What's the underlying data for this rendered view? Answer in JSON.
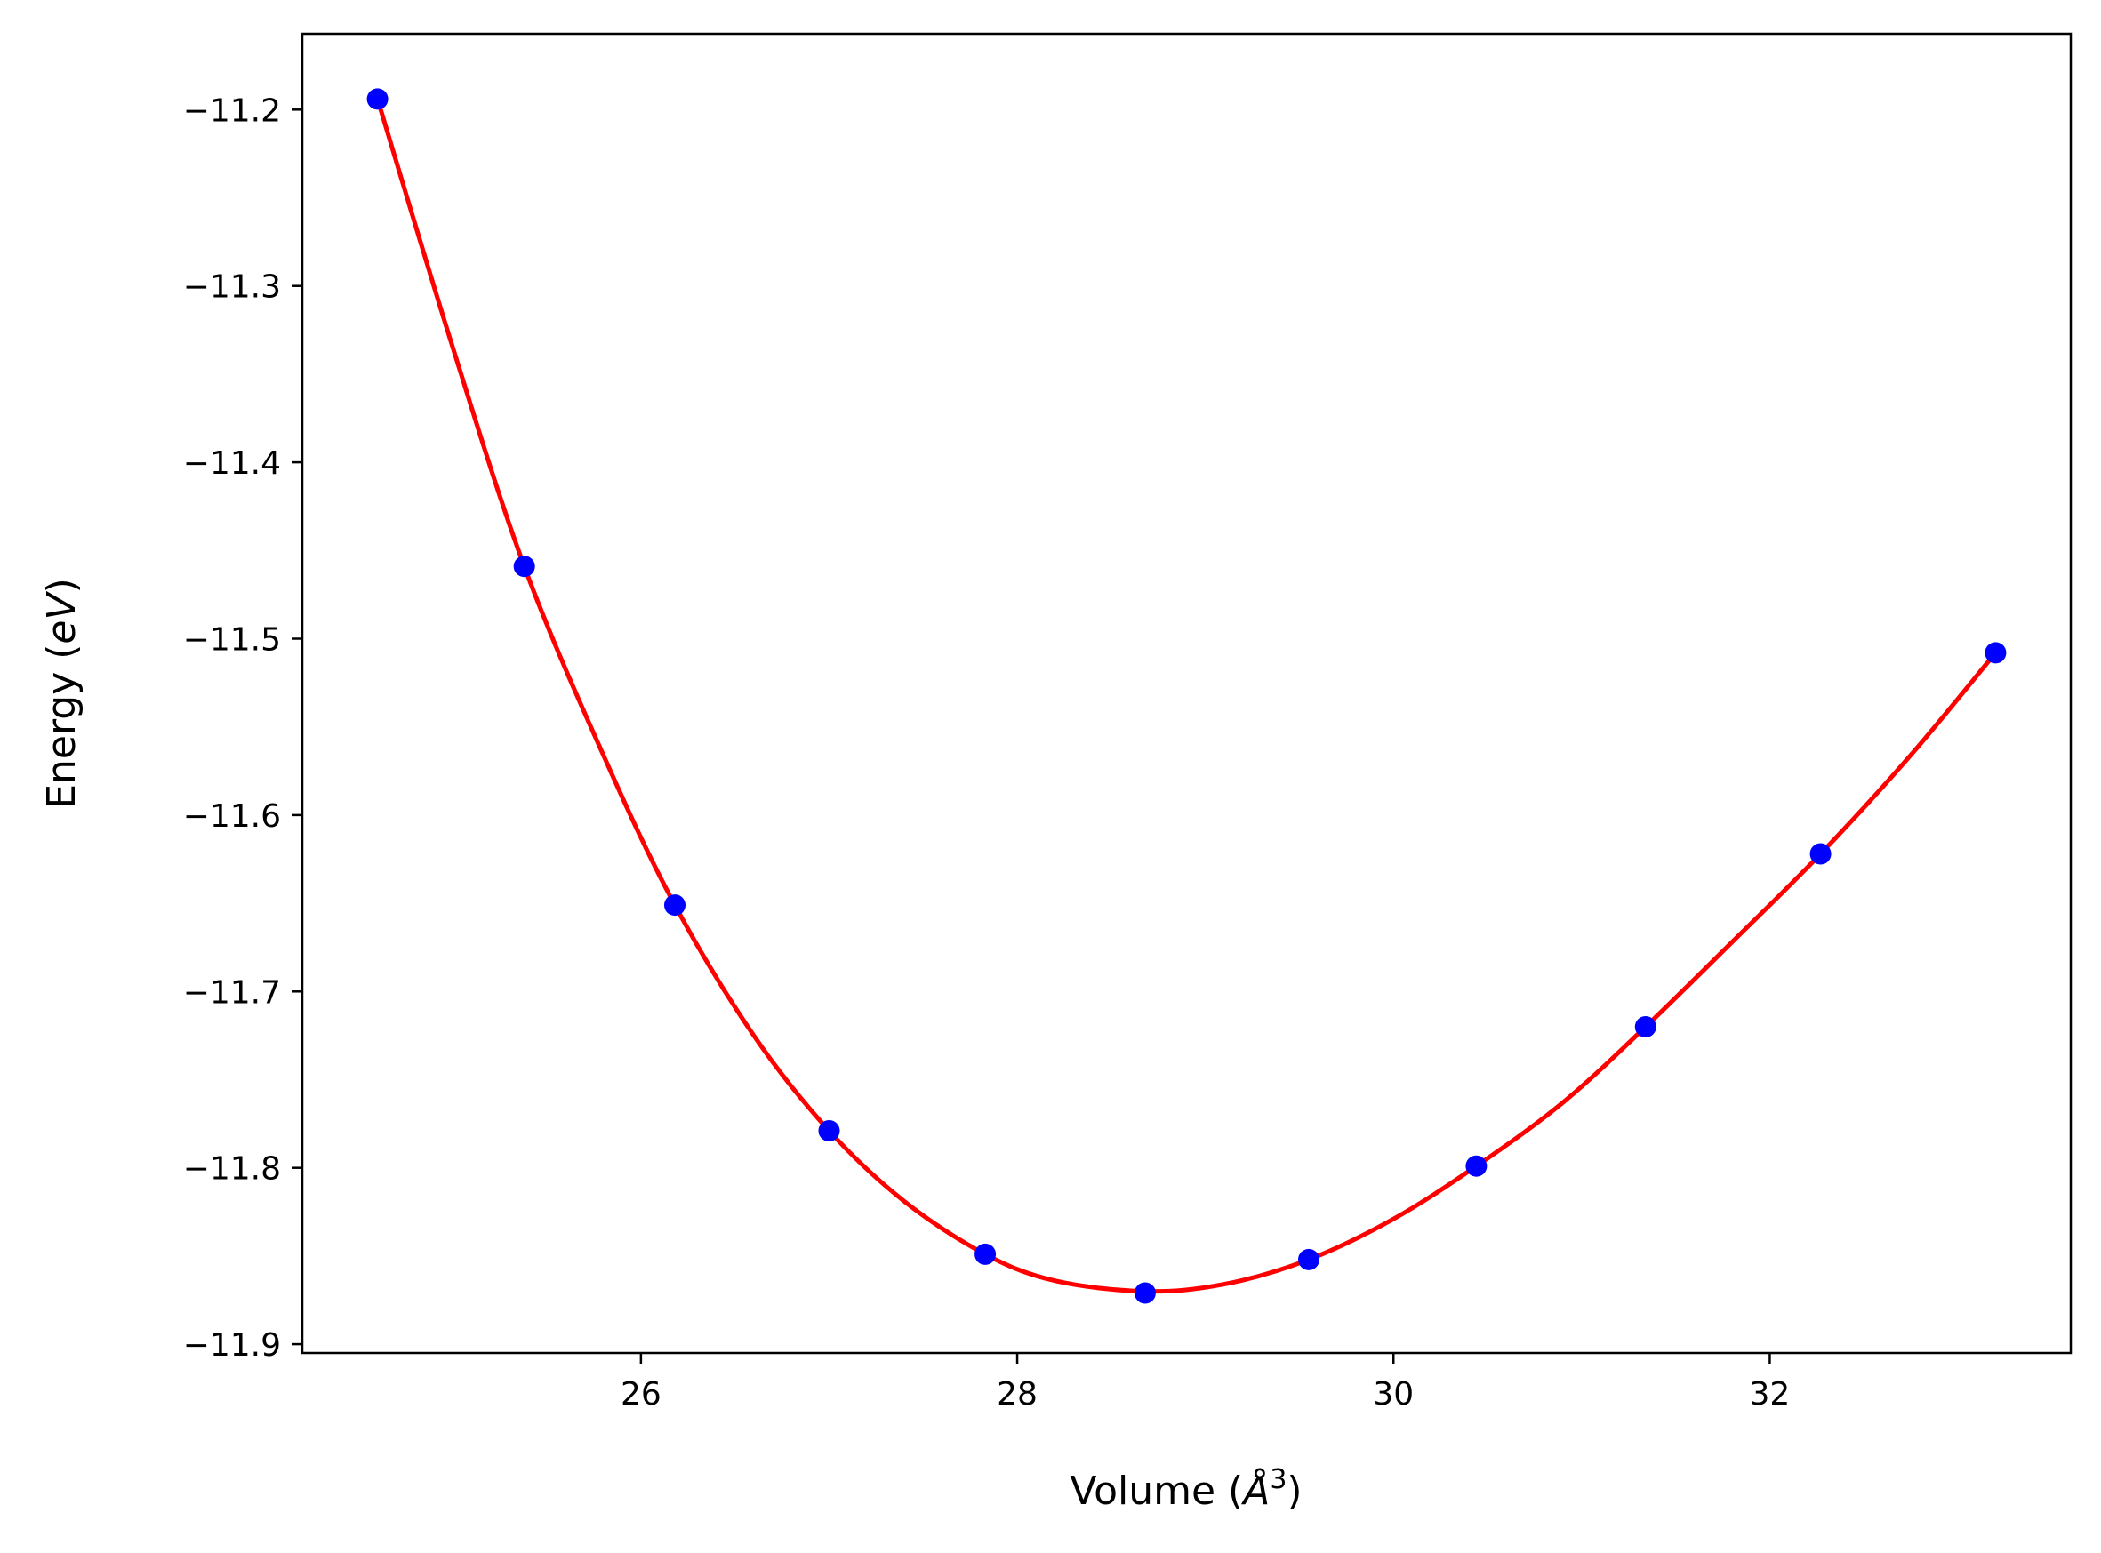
{
  "chart_data": {
    "type": "scatter",
    "xlabel": {
      "prefix": "Volume (",
      "unit": "Å",
      "sup": "3",
      "suffix": ")"
    },
    "ylabel": {
      "prefix": "Energy (",
      "unit": "eV",
      "suffix": ")"
    },
    "xlim": [
      24.2,
      33.6
    ],
    "ylim": [
      -11.905,
      -11.157
    ],
    "xticks": [
      26,
      28,
      30,
      32
    ],
    "xtick_labels": [
      "26",
      "28",
      "30",
      "32"
    ],
    "yticks": [
      -11.2,
      -11.3,
      -11.4,
      -11.5,
      -11.6,
      -11.7,
      -11.8,
      -11.9
    ],
    "ytick_labels": [
      "−11.2",
      "−11.3",
      "−11.4",
      "−11.5",
      "−11.6",
      "−11.7",
      "−11.8",
      "−11.9"
    ],
    "grid": false,
    "series": [
      {
        "kind": "points",
        "color": "#0000ff",
        "x": [
          24.6,
          25.38,
          26.18,
          27.0,
          27.83,
          28.68,
          29.55,
          30.44,
          31.34,
          32.27,
          33.2
        ],
        "y": [
          -11.194,
          -11.459,
          -11.651,
          -11.779,
          -11.849,
          -11.871,
          -11.852,
          -11.799,
          -11.72,
          -11.622,
          -11.508
        ]
      },
      {
        "kind": "fit-curve",
        "color": "#ff0000",
        "x": [
          24.6,
          25.0,
          25.38,
          25.8,
          26.18,
          26.6,
          27.0,
          27.4,
          27.83,
          28.2,
          28.68,
          29.1,
          29.55,
          30.0,
          30.44,
          30.9,
          31.34,
          31.8,
          32.27,
          32.75,
          33.2
        ],
        "y": [
          -11.194,
          -11.335,
          -11.459,
          -11.566,
          -11.651,
          -11.725,
          -11.779,
          -11.819,
          -11.849,
          -11.864,
          -11.87,
          -11.866,
          -11.852,
          -11.829,
          -11.799,
          -11.763,
          -11.72,
          -11.672,
          -11.622,
          -11.566,
          -11.508
        ]
      }
    ]
  }
}
